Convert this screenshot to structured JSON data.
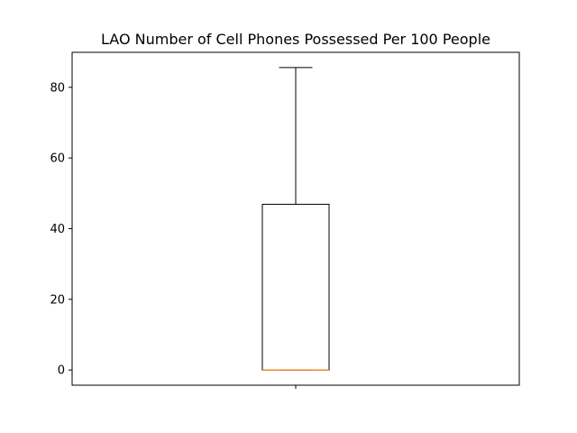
{
  "chart_data": {
    "type": "box",
    "title": "LAO Number of Cell Phones Possessed Per 100 People",
    "xlabel": "",
    "ylabel": "",
    "categories": [
      ""
    ],
    "box": {
      "whisker_low": 0,
      "q1": 0,
      "median": 0,
      "q3": 46.9,
      "whisker_high": 85.6
    },
    "ylim": [
      -4.3,
      89.9
    ],
    "yticks": [
      0,
      20,
      40,
      60,
      80
    ],
    "grid": false,
    "colors": {
      "box_edge": "#000000",
      "median": "#ff7f0e",
      "axes": "#000000"
    }
  }
}
